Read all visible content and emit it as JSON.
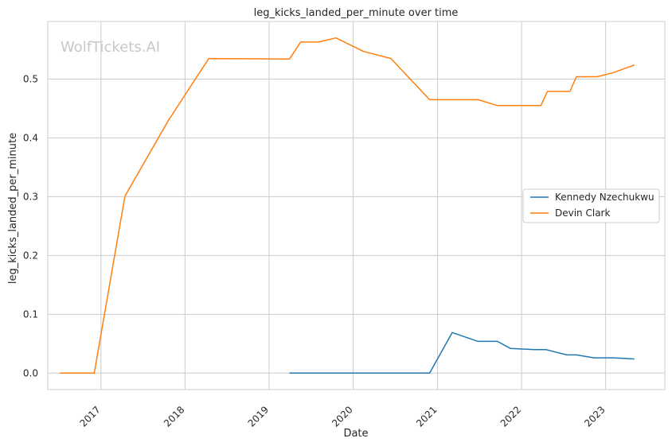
{
  "chart_data": {
    "type": "line",
    "title": "leg_kicks_landed_per_minute over time",
    "xlabel": "Date",
    "ylabel": "leg_kicks_landed_per_minute",
    "watermark": "WolfTickets.AI",
    "x_ticks": [
      "2017",
      "2018",
      "2019",
      "2020",
      "2021",
      "2022",
      "2023"
    ],
    "y_ticks": [
      "0.0",
      "0.1",
      "0.2",
      "0.3",
      "0.4",
      "0.5"
    ],
    "xlim": [
      "2016-05-15",
      "2023-09-15"
    ],
    "ylim": [
      -0.028,
      0.598
    ],
    "grid": true,
    "legend_position": "center-right",
    "series": [
      {
        "name": "Kennedy Nzechukwu",
        "color": "#1f77b4",
        "points": [
          [
            "2019-03-30",
            0.0
          ],
          [
            "2020-11-28",
            0.0
          ],
          [
            "2021-03-06",
            0.069
          ],
          [
            "2021-06-26",
            0.054
          ],
          [
            "2021-09-18",
            0.054
          ],
          [
            "2021-11-13",
            0.042
          ],
          [
            "2022-02-26",
            0.04
          ],
          [
            "2022-04-16",
            0.04
          ],
          [
            "2022-07-16",
            0.031
          ],
          [
            "2022-08-27",
            0.031
          ],
          [
            "2022-11-12",
            0.026
          ],
          [
            "2023-02-04",
            0.026
          ],
          [
            "2023-05-06",
            0.024
          ]
        ]
      },
      {
        "name": "Devin Clark",
        "color": "#ff7f0e",
        "points": [
          [
            "2016-07-07",
            0.0
          ],
          [
            "2016-12-03",
            0.0
          ],
          [
            "2017-04-15",
            0.301
          ],
          [
            "2017-10-21",
            0.43
          ],
          [
            "2018-04-14",
            0.535
          ],
          [
            "2019-03-30",
            0.534
          ],
          [
            "2019-05-18",
            0.563
          ],
          [
            "2019-08-03",
            0.563
          ],
          [
            "2019-10-18",
            0.57
          ],
          [
            "2020-02-15",
            0.547
          ],
          [
            "2020-06-13",
            0.535
          ],
          [
            "2020-11-28",
            0.465
          ],
          [
            "2021-06-26",
            0.465
          ],
          [
            "2021-09-18",
            0.455
          ],
          [
            "2022-03-26",
            0.455
          ],
          [
            "2022-04-23",
            0.479
          ],
          [
            "2022-07-30",
            0.479
          ],
          [
            "2022-08-27",
            0.504
          ],
          [
            "2022-11-26",
            0.504
          ],
          [
            "2023-02-04",
            0.511
          ],
          [
            "2023-05-06",
            0.524
          ]
        ]
      }
    ]
  }
}
